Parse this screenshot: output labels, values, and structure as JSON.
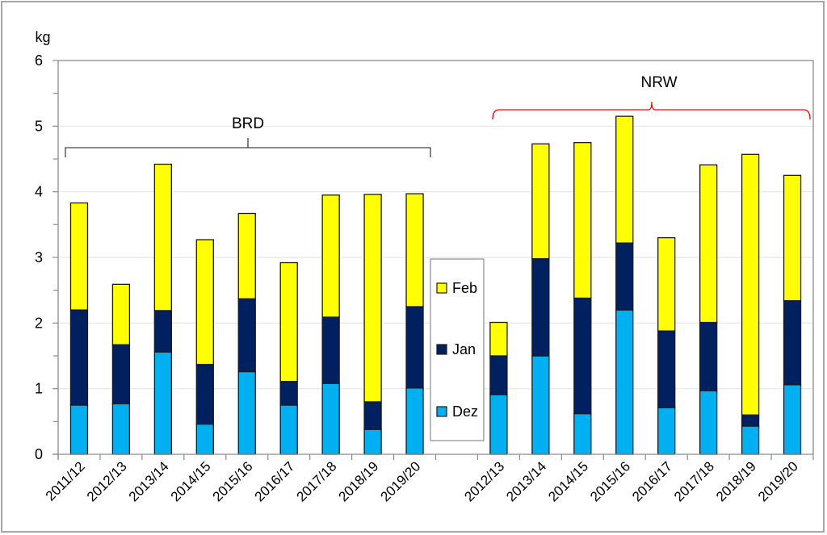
{
  "chart_data": {
    "type": "bar",
    "stacked": true,
    "title": "",
    "ylabel": "kg",
    "xlabel": "",
    "ylim": [
      0,
      6
    ],
    "yticks": [
      0,
      1,
      2,
      3,
      4,
      5,
      6
    ],
    "grid": true,
    "legend": {
      "placement": "center (between groups)",
      "entries": [
        "Feb",
        "Jan",
        "Dez"
      ]
    },
    "colors": {
      "Dez": "#00B0F0",
      "Jan": "#002060",
      "Feb": "#FFFF00",
      "brd_bracket": "#404040",
      "nrw_bracket": "#FF0000"
    },
    "groups": [
      {
        "name": "BRD",
        "categories": [
          "2011/12",
          "2012/13",
          "2013/14",
          "2014/15",
          "2015/16",
          "2016/17",
          "2017/18",
          "2018/19",
          "2019/20"
        ],
        "series": [
          {
            "name": "Dez",
            "values": [
              0.75,
              0.77,
              1.56,
              0.46,
              1.26,
              0.75,
              1.08,
              0.38,
              1.01
            ]
          },
          {
            "name": "Jan",
            "values": [
              1.45,
              0.9,
              0.63,
              0.91,
              1.11,
              0.36,
              1.01,
              0.42,
              1.24
            ]
          },
          {
            "name": "Feb",
            "values": [
              1.63,
              0.92,
              2.23,
              1.9,
              1.3,
              1.81,
              1.86,
              3.16,
              1.72
            ]
          }
        ],
        "totals": [
          3.83,
          2.59,
          4.42,
          3.27,
          3.67,
          2.92,
          3.95,
          3.96,
          3.97
        ]
      },
      {
        "name": "NRW",
        "categories": [
          "2012/13",
          "2013/14",
          "2014/15",
          "2015/16",
          "2016/17",
          "2017/18",
          "2018/19",
          "2019/20"
        ],
        "series": [
          {
            "name": "Dez",
            "values": [
              0.91,
              1.5,
              0.62,
              2.2,
              0.71,
              0.97,
              0.43,
              1.06
            ]
          },
          {
            "name": "Jan",
            "values": [
              0.59,
              1.48,
              1.76,
              1.02,
              1.17,
              1.04,
              0.17,
              1.28
            ]
          },
          {
            "name": "Feb",
            "values": [
              0.51,
              1.75,
              2.37,
              1.93,
              1.42,
              2.4,
              3.97,
              1.91
            ]
          }
        ],
        "totals": [
          2.01,
          4.73,
          4.75,
          5.15,
          3.3,
          4.41,
          4.57,
          4.25
        ]
      }
    ]
  }
}
